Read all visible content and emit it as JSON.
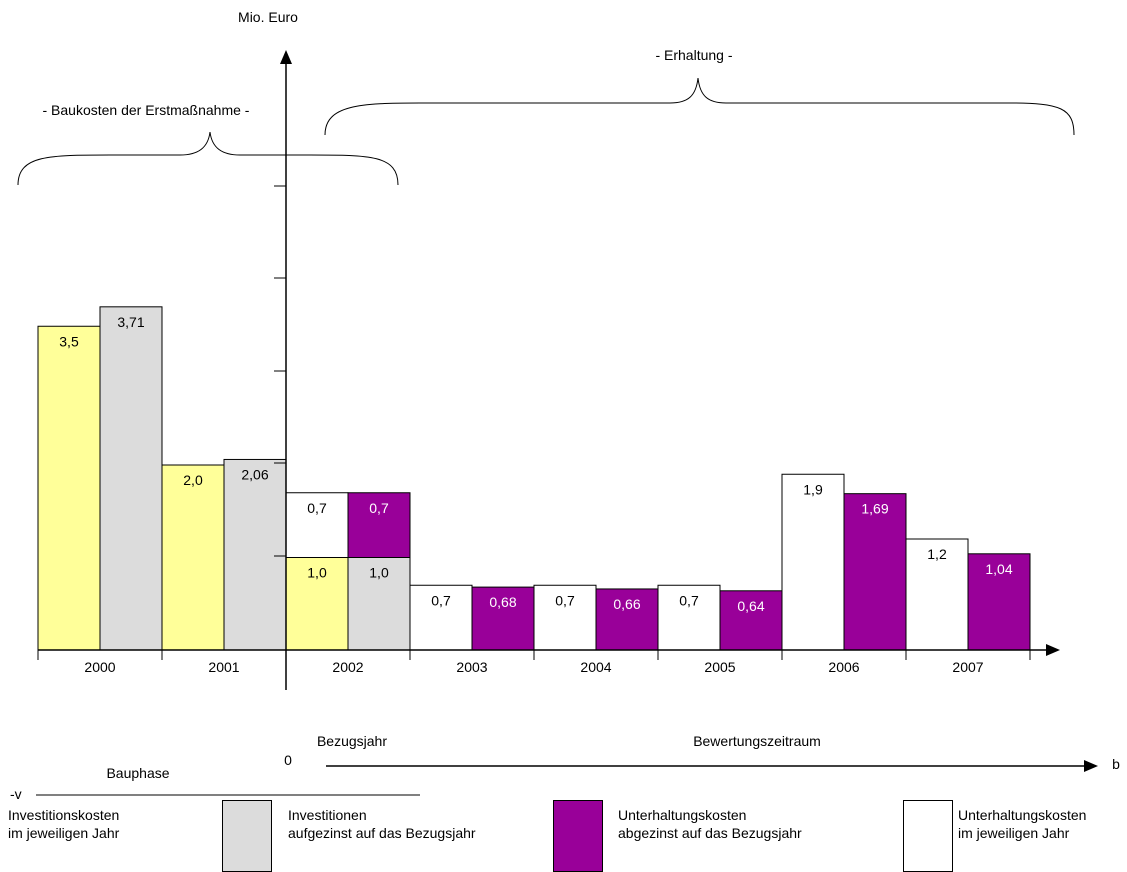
{
  "chart_data": {
    "type": "bar",
    "ylabel": "Mio. Euro",
    "categories": [
      "2000",
      "2001",
      "2002",
      "2003",
      "2004",
      "2005",
      "2006",
      "2007"
    ],
    "colors": {
      "investition": "#ffff99",
      "investition_aufgezinst": "#dcdcdc",
      "unterhaltung_abgezinst": "#990099",
      "unterhaltung": "#ffffff"
    },
    "series": [
      {
        "name": "Investitionskosten im jeweiligen Jahr",
        "key": "investition",
        "values": [
          3.5,
          2.0,
          1.0,
          null,
          null,
          null,
          null,
          null
        ],
        "labels": [
          "3,5",
          "2,0",
          "1,0",
          "",
          "",
          "",
          "",
          ""
        ]
      },
      {
        "name": "Investitionen aufgezinst auf das Bezugsjahr",
        "key": "investition_aufgezinst",
        "values": [
          3.71,
          2.06,
          1.0,
          null,
          null,
          null,
          null,
          null
        ],
        "labels": [
          "3,71",
          "2,06",
          "1,0",
          "",
          "",
          "",
          "",
          ""
        ]
      },
      {
        "name": "Unterhaltungskosten im jeweiligen Jahr",
        "key": "unterhaltung",
        "values": [
          null,
          null,
          0.7,
          0.7,
          0.7,
          0.7,
          1.9,
          1.2
        ],
        "labels": [
          "",
          "",
          "0,7",
          "0,7",
          "0,7",
          "0,7",
          "1,9",
          "1,2"
        ]
      },
      {
        "name": "Unterhaltungskosten abgezinst auf das Bezugsjahr",
        "key": "unterhaltung_abgezinst",
        "values": [
          null,
          null,
          0.7,
          0.68,
          0.66,
          0.64,
          1.69,
          1.04
        ],
        "labels": [
          "",
          "",
          "0,7",
          "0,68",
          "0,66",
          "0,64",
          "1,69",
          "1,04"
        ]
      }
    ],
    "stacked_in": [
      "2002"
    ],
    "annotations": {
      "baukosten": "- Baukosten der Erstmaßnahme -",
      "erhaltung": "- Erhaltung -",
      "bezugsjahr": "Bezugsjahr",
      "bewertungszeitraum": "Bewertungszeitraum",
      "bauphase": "Bauphase",
      "zero": "0",
      "b": "b",
      "minus_v": "-v"
    }
  },
  "legend": [
    {
      "line1": "Investitionskosten",
      "line2": "im jeweiligen Jahr",
      "color": "#ffff99"
    },
    {
      "line1": "Investitionen",
      "line2": "aufgezinst auf das Bezugsjahr",
      "color": "#dcdcdc"
    },
    {
      "line1": "Unterhaltungskosten",
      "line2": "abgezinst auf das Bezugsjahr",
      "color": "#990099"
    },
    {
      "line1": "Unterhaltungskosten",
      "line2": "im jeweiligen Jahr",
      "color": "#ffffff"
    }
  ]
}
